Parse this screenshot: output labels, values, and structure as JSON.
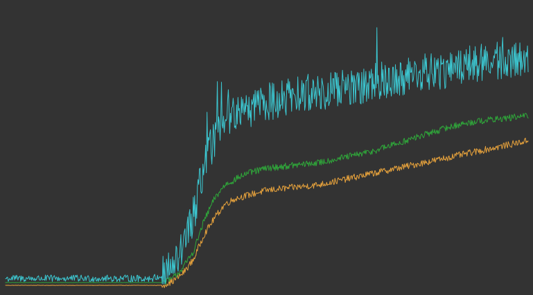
{
  "chart_data": {
    "type": "line",
    "title": "",
    "xlabel": "",
    "ylabel": "",
    "grid": false,
    "legend": "none",
    "background": "#333333",
    "xlim": [
      0,
      100
    ],
    "ylim": [
      0,
      100
    ],
    "series": [
      {
        "key": "cyan",
        "color": "#3cc8d2",
        "x": [
          0,
          10,
          20,
          28,
          30,
          32,
          34,
          36,
          38,
          40,
          42,
          44,
          46,
          48,
          50,
          55,
          60,
          65,
          70,
          75,
          80,
          85,
          90,
          95,
          100
        ],
        "values": [
          4,
          4,
          4,
          4,
          5,
          8,
          15,
          27,
          45,
          55,
          62,
          64,
          65,
          67,
          68,
          70,
          72,
          73,
          75,
          77,
          79,
          80,
          82,
          83,
          84
        ],
        "noise": 7
      },
      {
        "key": "green",
        "color": "#2fa83a",
        "x": [
          0,
          10,
          20,
          30,
          32,
          34,
          36,
          38,
          40,
          42,
          44,
          46,
          48,
          50,
          55,
          60,
          65,
          70,
          75,
          80,
          85,
          90,
          95,
          100
        ],
        "values": [
          2.5,
          2.5,
          2.5,
          2.5,
          4,
          8,
          14,
          25,
          33,
          38,
          40,
          42,
          43,
          44,
          45,
          46,
          48,
          50,
          53,
          56,
          59,
          61,
          62,
          63
        ],
        "noise": 1.2
      },
      {
        "key": "orange",
        "color": "#e8a33c",
        "x": [
          0,
          10,
          20,
          30,
          32,
          34,
          36,
          38,
          40,
          42,
          44,
          46,
          48,
          50,
          55,
          60,
          65,
          70,
          75,
          80,
          85,
          90,
          95,
          100
        ],
        "values": [
          1.5,
          1.5,
          1.5,
          1.5,
          3,
          6,
          11,
          20,
          26,
          31,
          33,
          34,
          35,
          36,
          37,
          38,
          40,
          42,
          44,
          46,
          48,
          50,
          52,
          54
        ],
        "noise": 1.2
      }
    ]
  }
}
